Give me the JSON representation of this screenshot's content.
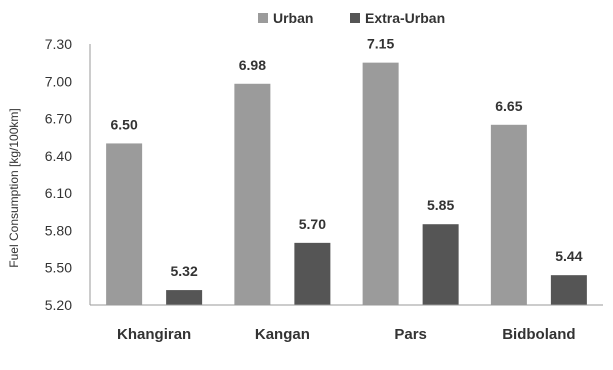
{
  "chart_data": {
    "type": "bar",
    "categories": [
      "Khangiran",
      "Kangan",
      "Pars",
      "Bidboland"
    ],
    "series": [
      {
        "name": "Urban",
        "values": [
          6.5,
          6.98,
          7.15,
          6.65
        ],
        "labels": [
          "6.50",
          "6.98",
          "7.15",
          "6.65"
        ]
      },
      {
        "name": "Extra-Urban",
        "values": [
          5.32,
          5.7,
          5.85,
          5.44
        ],
        "labels": [
          "5.32",
          "5.70",
          "5.85",
          "5.44"
        ]
      }
    ],
    "xlabel": "",
    "ylabel": "Fuel Consumption [kg/100km]",
    "ylim": [
      5.2,
      7.3
    ],
    "yticks": [
      "5.20",
      "5.50",
      "5.80",
      "6.10",
      "6.40",
      "6.70",
      "7.00",
      "7.30"
    ],
    "grid": false,
    "legend_position": "top-center",
    "colors": {
      "Urban": "#9b9b9b",
      "Extra-Urban": "#555555"
    }
  }
}
